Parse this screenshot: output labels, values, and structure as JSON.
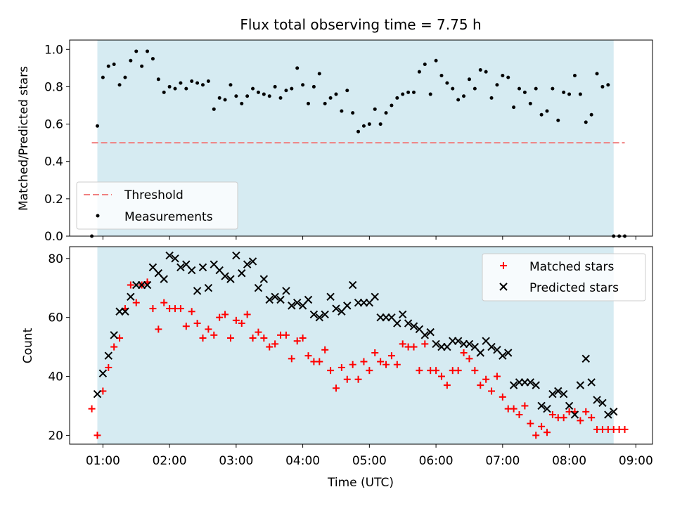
{
  "title": "Flux total observing time = 7.75 h",
  "colors": {
    "shade": "#add8e6",
    "threshold": "#f08080",
    "measurement": "#000000",
    "matched": "#ff0000",
    "predicted": "#000000"
  },
  "chart_data": [
    {
      "type": "scatter",
      "ylabel": "Matched/Predicted stars",
      "ylim": [
        0,
        1.05
      ],
      "yticks": [
        0.0,
        0.2,
        0.4,
        0.6,
        0.8,
        1.0
      ],
      "ytick_labels": [
        "0.0",
        "0.2",
        "0.4",
        "0.6",
        "0.8",
        "1.0"
      ],
      "shaded_interval": [
        "00:55",
        "08:40"
      ],
      "legend": {
        "placement": "lower left",
        "entries": [
          "Threshold",
          "Measurements"
        ]
      },
      "threshold": {
        "name": "Threshold",
        "value": 0.5,
        "x_range": [
          "00:50",
          "08:50"
        ],
        "style": "dashed"
      },
      "series": [
        {
          "name": "Measurements",
          "marker": "dot",
          "x": [
            "00:50",
            "00:55",
            "01:00",
            "01:05",
            "01:10",
            "01:15",
            "01:20",
            "01:25",
            "01:30",
            "01:35",
            "01:40",
            "01:45",
            "01:50",
            "01:55",
            "02:00",
            "02:05",
            "02:10",
            "02:15",
            "02:20",
            "02:25",
            "02:30",
            "02:35",
            "02:40",
            "02:45",
            "02:50",
            "02:55",
            "03:00",
            "03:05",
            "03:10",
            "03:15",
            "03:20",
            "03:25",
            "03:30",
            "03:35",
            "03:40",
            "03:45",
            "03:50",
            "03:55",
            "04:00",
            "04:05",
            "04:10",
            "04:15",
            "04:20",
            "04:25",
            "04:30",
            "04:35",
            "04:40",
            "04:45",
            "04:50",
            "04:55",
            "05:00",
            "05:05",
            "05:10",
            "05:15",
            "05:20",
            "05:25",
            "05:30",
            "05:35",
            "05:40",
            "05:45",
            "05:50",
            "05:55",
            "06:00",
            "06:05",
            "06:10",
            "06:15",
            "06:20",
            "06:25",
            "06:30",
            "06:35",
            "06:40",
            "06:45",
            "06:50",
            "06:55",
            "07:00",
            "07:05",
            "07:10",
            "07:15",
            "07:20",
            "07:25",
            "07:30",
            "07:35",
            "07:40",
            "07:45",
            "07:50",
            "07:55",
            "08:00",
            "08:05",
            "08:10",
            "08:15",
            "08:20",
            "08:25",
            "08:30",
            "08:35",
            "08:40",
            "08:45",
            "08:50"
          ],
          "y": [
            0.0,
            0.59,
            0.85,
            0.91,
            0.92,
            0.81,
            0.85,
            0.94,
            0.99,
            0.91,
            0.99,
            0.95,
            0.84,
            0.77,
            0.8,
            0.79,
            0.82,
            0.79,
            0.83,
            0.82,
            0.81,
            0.83,
            0.68,
            0.74,
            0.73,
            0.81,
            0.75,
            0.71,
            0.75,
            0.79,
            0.77,
            0.76,
            0.75,
            0.8,
            0.74,
            0.78,
            0.79,
            0.9,
            0.81,
            0.71,
            0.8,
            0.87,
            0.71,
            0.74,
            0.76,
            0.67,
            0.78,
            0.66,
            0.56,
            0.59,
            0.6,
            0.68,
            0.6,
            0.66,
            0.7,
            0.74,
            0.76,
            0.77,
            0.77,
            0.88,
            0.92,
            0.76,
            0.94,
            0.86,
            0.82,
            0.79,
            0.73,
            0.75,
            0.84,
            0.79,
            0.89,
            0.88,
            0.74,
            0.81,
            0.86,
            0.85,
            0.69,
            0.79,
            0.77,
            0.71,
            0.79,
            0.65,
            0.67,
            0.79,
            0.62,
            0.77,
            0.76,
            0.86,
            0.76,
            0.61,
            0.65,
            0.87,
            0.8,
            0.81,
            0.0,
            0.0,
            0.0
          ]
        }
      ]
    },
    {
      "type": "scatter",
      "xlabel": "Time (UTC)",
      "ylabel": "Count",
      "ylim": [
        17,
        84
      ],
      "yticks": [
        20,
        40,
        60,
        80
      ],
      "ytick_labels": [
        "20",
        "40",
        "60",
        "80"
      ],
      "xticks": [
        "01:00",
        "02:00",
        "03:00",
        "04:00",
        "05:00",
        "06:00",
        "07:00",
        "08:00",
        "09:00"
      ],
      "xtick_labels": [
        "01:00",
        "02:00",
        "03:00",
        "04:00",
        "05:00",
        "06:00",
        "07:00",
        "08:00",
        "09:00"
      ],
      "xlim": [
        "00:30",
        "09:15"
      ],
      "shaded_interval": [
        "00:55",
        "08:40"
      ],
      "legend": {
        "placement": "upper right",
        "entries": [
          "Matched stars",
          "Predicted stars"
        ]
      },
      "series": [
        {
          "name": "Matched stars",
          "marker": "plus",
          "x": [
            "00:50",
            "00:55",
            "01:00",
            "01:05",
            "01:10",
            "01:15",
            "01:20",
            "01:25",
            "01:30",
            "01:35",
            "01:40",
            "01:45",
            "01:50",
            "01:55",
            "02:00",
            "02:05",
            "02:10",
            "02:15",
            "02:20",
            "02:25",
            "02:30",
            "02:35",
            "02:40",
            "02:45",
            "02:50",
            "02:55",
            "03:00",
            "03:05",
            "03:10",
            "03:15",
            "03:20",
            "03:25",
            "03:30",
            "03:35",
            "03:40",
            "03:45",
            "03:50",
            "03:55",
            "04:00",
            "04:05",
            "04:10",
            "04:15",
            "04:20",
            "04:25",
            "04:30",
            "04:35",
            "04:40",
            "04:45",
            "04:50",
            "04:55",
            "05:00",
            "05:05",
            "05:10",
            "05:15",
            "05:20",
            "05:25",
            "05:30",
            "05:35",
            "05:40",
            "05:45",
            "05:50",
            "05:55",
            "06:00",
            "06:05",
            "06:10",
            "06:15",
            "06:20",
            "06:25",
            "06:30",
            "06:35",
            "06:40",
            "06:45",
            "06:50",
            "06:55",
            "07:00",
            "07:05",
            "07:10",
            "07:15",
            "07:20",
            "07:25",
            "07:30",
            "07:35",
            "07:40",
            "07:45",
            "07:50",
            "07:55",
            "08:00",
            "08:05",
            "08:10",
            "08:15",
            "08:20",
            "08:25",
            "08:30",
            "08:35",
            "08:40",
            "08:45",
            "08:50"
          ],
          "y": [
            29,
            20,
            35,
            43,
            50,
            53,
            63,
            71,
            65,
            71,
            72,
            63,
            56,
            65,
            63,
            63,
            63,
            57,
            62,
            58,
            53,
            56,
            54,
            60,
            61,
            53,
            59,
            58,
            61,
            53,
            55,
            53,
            50,
            51,
            54,
            54,
            46,
            52,
            53,
            47,
            45,
            45,
            49,
            42,
            36,
            43,
            39,
            44,
            39,
            45,
            42,
            48,
            45,
            44,
            47,
            44,
            51,
            50,
            50,
            42,
            51,
            42,
            42,
            40,
            37,
            42,
            42,
            48,
            46,
            42,
            37,
            39,
            35,
            40,
            33,
            29,
            29,
            27,
            30,
            24,
            20,
            23,
            21,
            27,
            26,
            26,
            28,
            28,
            25,
            28,
            26,
            22,
            22,
            22,
            22,
            22,
            22
          ],
          "display_y": [
            29,
            20,
            35,
            43,
            50,
            53,
            63,
            71,
            65,
            71,
            72,
            63,
            56,
            65,
            63,
            63,
            63,
            57,
            62,
            58,
            53,
            56,
            54,
            60,
            61,
            53,
            59,
            58,
            61,
            53,
            55,
            53,
            50,
            51,
            54,
            54,
            46,
            52,
            53,
            47,
            45,
            45,
            49,
            42,
            36,
            43,
            39,
            44,
            39,
            45,
            42,
            48,
            45,
            44,
            47,
            44,
            51,
            50,
            50,
            42,
            51,
            42,
            42,
            40,
            37,
            42,
            42,
            48,
            46,
            42,
            37,
            39,
            35,
            40,
            33,
            29,
            29,
            27,
            30,
            24,
            20,
            23,
            21,
            27,
            26,
            26,
            28,
            28,
            25,
            28,
            26,
            22,
            22,
            22,
            22,
            22,
            22
          ]
        },
        {
          "name": "Predicted stars",
          "marker": "x",
          "x": [
            "00:55",
            "01:00",
            "01:05",
            "01:10",
            "01:15",
            "01:20",
            "01:25",
            "01:30",
            "01:35",
            "01:40",
            "01:45",
            "01:50",
            "01:55",
            "02:00",
            "02:05",
            "02:10",
            "02:15",
            "02:20",
            "02:25",
            "02:30",
            "02:35",
            "02:40",
            "02:45",
            "02:50",
            "02:55",
            "03:00",
            "03:05",
            "03:10",
            "03:15",
            "03:20",
            "03:25",
            "03:30",
            "03:35",
            "03:40",
            "03:45",
            "03:50",
            "03:55",
            "04:00",
            "04:05",
            "04:10",
            "04:15",
            "04:20",
            "04:25",
            "04:30",
            "04:35",
            "04:40",
            "04:45",
            "04:50",
            "04:55",
            "05:00",
            "05:05",
            "05:10",
            "05:15",
            "05:20",
            "05:25",
            "05:30",
            "05:35",
            "05:40",
            "05:45",
            "05:50",
            "05:55",
            "06:00",
            "06:05",
            "06:10",
            "06:15",
            "06:20",
            "06:25",
            "06:30",
            "06:35",
            "06:40",
            "06:45",
            "06:50",
            "06:55",
            "07:00",
            "07:05",
            "07:10",
            "07:15",
            "07:20",
            "07:25",
            "07:30",
            "07:35",
            "07:40",
            "07:45",
            "07:50",
            "07:55",
            "08:00",
            "08:05",
            "08:10",
            "08:15",
            "08:20",
            "08:25",
            "08:30",
            "08:35",
            "08:40"
          ],
          "y": [
            34,
            41,
            47,
            54,
            62,
            62,
            67,
            71,
            71,
            71,
            77,
            75,
            73,
            81,
            80,
            77,
            78,
            76,
            69,
            77,
            70,
            78,
            76,
            74,
            73,
            81,
            75,
            78,
            79,
            70,
            73,
            66,
            67,
            66,
            69,
            64,
            65,
            64,
            66,
            61,
            60,
            61,
            67,
            63,
            62,
            64,
            71,
            65,
            65,
            65,
            67,
            60,
            60,
            60,
            58,
            61,
            58,
            57,
            56,
            54,
            55,
            51,
            50,
            50,
            52,
            52,
            51,
            51,
            50,
            48,
            52,
            50,
            49,
            47,
            48,
            37,
            38,
            38,
            38,
            37,
            30,
            29,
            34,
            35,
            34,
            30,
            27,
            37,
            46,
            38,
            32,
            31,
            27,
            28
          ],
          "display_y": [
            34,
            41,
            47,
            54,
            62,
            62,
            67,
            71,
            71,
            71,
            77,
            75,
            73,
            81,
            80,
            77,
            78,
            76,
            69,
            77,
            70,
            78,
            76,
            74,
            73,
            81,
            75,
            78,
            79,
            70,
            73,
            66,
            67,
            66,
            69,
            64,
            65,
            64,
            66,
            61,
            60,
            61,
            67,
            63,
            62,
            64,
            71,
            65,
            65,
            65,
            67,
            60,
            60,
            60,
            58,
            61,
            58,
            57,
            56,
            54,
            55,
            51,
            50,
            50,
            52,
            52,
            51,
            51,
            50,
            48,
            52,
            50,
            49,
            47,
            48,
            37,
            38,
            38,
            38,
            37,
            30,
            29,
            34,
            35,
            34,
            30,
            27,
            37,
            46,
            38,
            32,
            31,
            27,
            28
          ]
        }
      ]
    }
  ]
}
